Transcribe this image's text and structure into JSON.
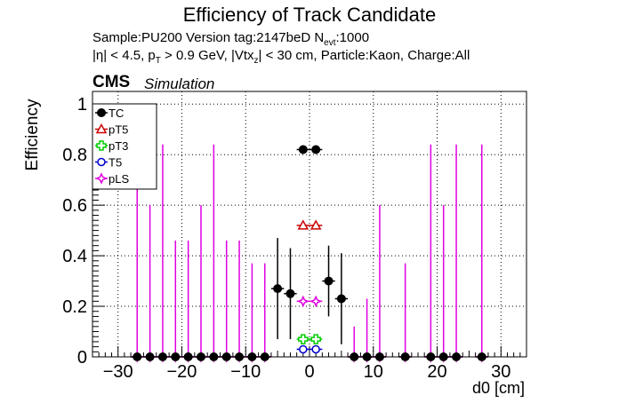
{
  "title": "Efficiency of Track Candidate",
  "header": {
    "sample_text": "Sample:PU200   Version tag:2147beD  N",
    "nevt_sub": "evt",
    "nevt_value": ":1000",
    "cut_parts": [
      "|η| < 4.5, p",
      "T",
      " > 0.9 GeV, |Vtx",
      "z",
      "| < 30 cm, Particle:Kaon, Charge:All"
    ],
    "cms": "CMS",
    "simulation": "Simulation"
  },
  "chart_data": {
    "type": "scatter",
    "title": "Efficiency of Track Candidate",
    "xlabel": "d0 [cm]",
    "ylabel": "Efficiency",
    "xlim": [
      -34,
      34
    ],
    "ylim": [
      0,
      1.05
    ],
    "xticks": [
      -30,
      -20,
      -10,
      0,
      10,
      20,
      30
    ],
    "xtick_labels": [
      "−30",
      "−20",
      "−10",
      "0",
      "10",
      "20",
      "30"
    ],
    "yticks": [
      0,
      0.2,
      0.4,
      0.6,
      0.8,
      1
    ],
    "ytick_labels": [
      "0",
      "0.2",
      "0.4",
      "0.6",
      "0.8",
      "1"
    ],
    "grid": true,
    "legend_position": "top-left",
    "series": [
      {
        "name": "TC",
        "color": "#000000",
        "marker": "filled-circle",
        "points": [
          {
            "x": -27,
            "y": 0
          },
          {
            "x": -25,
            "y": 0
          },
          {
            "x": -23,
            "y": 0
          },
          {
            "x": -21,
            "y": 0
          },
          {
            "x": -19,
            "y": 0
          },
          {
            "x": -17,
            "y": 0
          },
          {
            "x": -15,
            "y": 0
          },
          {
            "x": -13,
            "y": 0
          },
          {
            "x": -11,
            "y": 0
          },
          {
            "x": -9,
            "y": 0
          },
          {
            "x": -7,
            "y": 0
          },
          {
            "x": -5,
            "y": 0.27,
            "err": 0.2
          },
          {
            "x": -3,
            "y": 0.25,
            "err": 0.18
          },
          {
            "x": -1,
            "y": 0.82,
            "err": 0.01
          },
          {
            "x": 1,
            "y": 0.82,
            "err": 0.01
          },
          {
            "x": 3,
            "y": 0.3,
            "err": 0.14
          },
          {
            "x": 5,
            "y": 0.23,
            "err": 0.18
          },
          {
            "x": 7,
            "y": 0
          },
          {
            "x": 9,
            "y": 0
          },
          {
            "x": 11,
            "y": 0
          },
          {
            "x": 15,
            "y": 0
          },
          {
            "x": 19,
            "y": 0
          },
          {
            "x": 21,
            "y": 0
          },
          {
            "x": 23,
            "y": 0
          },
          {
            "x": 27,
            "y": 0
          }
        ]
      },
      {
        "name": "pT5",
        "color": "#cc0000",
        "marker": "open-triangle",
        "points": [
          {
            "x": -1,
            "y": 0.52
          },
          {
            "x": 1,
            "y": 0.52
          }
        ]
      },
      {
        "name": "pT3",
        "color": "#00cc00",
        "marker": "open-cross",
        "points": [
          {
            "x": -1,
            "y": 0.07
          },
          {
            "x": 1,
            "y": 0.07
          }
        ]
      },
      {
        "name": "T5",
        "color": "#0000cc",
        "marker": "open-circle",
        "points": [
          {
            "x": -1,
            "y": 0.03
          },
          {
            "x": 1,
            "y": 0.03
          }
        ]
      },
      {
        "name": "pLS",
        "color": "#e000e0",
        "marker": "open-star",
        "points": [
          {
            "x": -27,
            "y": 0,
            "err_up": 0.84
          },
          {
            "x": -25,
            "y": 0,
            "err_up": 0.6
          },
          {
            "x": -23,
            "y": 0,
            "err_up": 0.84
          },
          {
            "x": -21,
            "y": 0,
            "err_up": 0.46
          },
          {
            "x": -19,
            "y": 0,
            "err_up": 0.46
          },
          {
            "x": -17,
            "y": 0,
            "err_up": 0.6
          },
          {
            "x": -15,
            "y": 0,
            "err_up": 0.84
          },
          {
            "x": -13,
            "y": 0,
            "err_up": 0.46
          },
          {
            "x": -11,
            "y": 0,
            "err_up": 0.46
          },
          {
            "x": -9,
            "y": 0,
            "err_up": 0.37
          },
          {
            "x": -7,
            "y": 0,
            "err_up": 0.37
          },
          {
            "x": -1,
            "y": 0.22
          },
          {
            "x": 1,
            "y": 0.22
          },
          {
            "x": 7,
            "y": 0,
            "err_up": 0.12
          },
          {
            "x": 9,
            "y": 0,
            "err_up": 0.23
          },
          {
            "x": 11,
            "y": 0,
            "err_up": 0.6
          },
          {
            "x": 15,
            "y": 0,
            "err_up": 0.37
          },
          {
            "x": 19,
            "y": 0,
            "err_up": 0.84
          },
          {
            "x": 21,
            "y": 0,
            "err_up": 0.6
          },
          {
            "x": 23,
            "y": 0,
            "err_up": 0.84
          },
          {
            "x": 27,
            "y": 0,
            "err_up": 0.84
          }
        ]
      }
    ]
  }
}
